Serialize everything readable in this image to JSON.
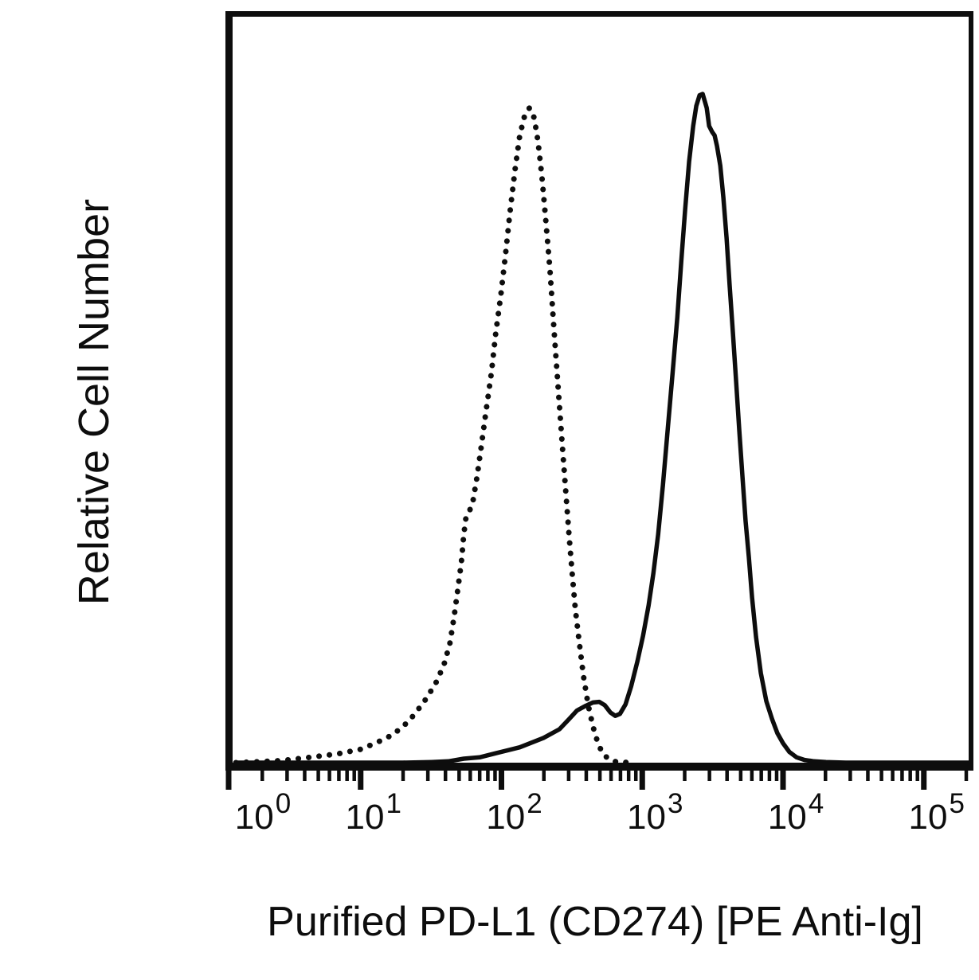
{
  "figure": {
    "background": "#ffffff",
    "ink_color": "#0d0d0d"
  },
  "chart_data": {
    "type": "line",
    "subtype": "flow-cytometry-histogram",
    "title": "",
    "xlabel": "Purified PD-L1 (CD274) [PE Anti-Ig]",
    "ylabel": "Relative Cell Number",
    "x_scale": "log10",
    "x_range": [
      1,
      100000
    ],
    "y_range": [
      0,
      1
    ],
    "grid": false,
    "legend": "none",
    "x_ticks": [
      {
        "base": "10",
        "exp": "0"
      },
      {
        "base": "10",
        "exp": "1"
      },
      {
        "base": "10",
        "exp": "2"
      },
      {
        "base": "10",
        "exp": "3"
      },
      {
        "base": "10",
        "exp": "4"
      },
      {
        "base": "10",
        "exp": "5"
      }
    ],
    "series": [
      {
        "name": "dotted-curve",
        "style": "dotted",
        "color": "#0d0d0d",
        "points": [
          [
            1.3,
            0
          ],
          [
            2.7,
            0.003
          ],
          [
            4,
            0.007
          ],
          [
            6.8,
            0.013
          ],
          [
            10,
            0.02
          ],
          [
            13,
            0.03
          ],
          [
            17,
            0.042
          ],
          [
            22,
            0.062
          ],
          [
            28,
            0.09
          ],
          [
            34,
            0.118
          ],
          [
            39,
            0.146
          ],
          [
            43,
            0.178
          ],
          [
            46,
            0.217
          ],
          [
            49,
            0.259
          ],
          [
            52,
            0.301
          ],
          [
            54,
            0.341
          ],
          [
            56,
            0.367
          ],
          [
            60,
            0.379
          ],
          [
            63,
            0.393
          ],
          [
            67,
            0.427
          ],
          [
            72,
            0.474
          ],
          [
            78,
            0.528
          ],
          [
            85,
            0.584
          ],
          [
            91,
            0.642
          ],
          [
            99,
            0.699
          ],
          [
            107,
            0.761
          ],
          [
            115,
            0.823
          ],
          [
            125,
            0.887
          ],
          [
            135,
            0.938
          ],
          [
            146,
            0.967
          ],
          [
            158,
            0.979
          ],
          [
            171,
            0.964
          ],
          [
            182,
            0.928
          ],
          [
            194,
            0.875
          ],
          [
            207,
            0.809
          ],
          [
            221,
            0.737
          ],
          [
            233,
            0.666
          ],
          [
            245,
            0.6
          ],
          [
            258,
            0.534
          ],
          [
            272,
            0.468
          ],
          [
            287,
            0.403
          ],
          [
            302,
            0.341
          ],
          [
            318,
            0.283
          ],
          [
            335,
            0.229
          ],
          [
            358,
            0.178
          ],
          [
            382,
            0.13
          ],
          [
            413,
            0.086
          ],
          [
            447,
            0.054
          ],
          [
            483,
            0.03
          ],
          [
            522,
            0.014
          ],
          [
            579,
            0.005
          ],
          [
            659,
            0.001
          ],
          [
            900,
            0
          ]
        ]
      },
      {
        "name": "solid-curve",
        "style": "solid",
        "color": "#0d0d0d",
        "points": [
          [
            1.3,
            0
          ],
          [
            20,
            0
          ],
          [
            32,
            0.001
          ],
          [
            42,
            0.002
          ],
          [
            54,
            0.006
          ],
          [
            70,
            0.008
          ],
          [
            91,
            0.014
          ],
          [
            135,
            0.023
          ],
          [
            199,
            0.037
          ],
          [
            258,
            0.05
          ],
          [
            302,
            0.065
          ],
          [
            344,
            0.078
          ],
          [
            397,
            0.085
          ],
          [
            447,
            0.09
          ],
          [
            495,
            0.091
          ],
          [
            542,
            0.086
          ],
          [
            594,
            0.075
          ],
          [
            643,
            0.07
          ],
          [
            695,
            0.073
          ],
          [
            760,
            0.087
          ],
          [
            834,
            0.114
          ],
          [
            925,
            0.152
          ],
          [
            1014,
            0.19
          ],
          [
            1109,
            0.235
          ],
          [
            1200,
            0.283
          ],
          [
            1297,
            0.341
          ],
          [
            1403,
            0.415
          ],
          [
            1517,
            0.498
          ],
          [
            1641,
            0.582
          ],
          [
            1774,
            0.666
          ],
          [
            1892,
            0.749
          ],
          [
            2018,
            0.827
          ],
          [
            2153,
            0.899
          ],
          [
            2301,
            0.952
          ],
          [
            2421,
            0.982
          ],
          [
            2553,
            0.998
          ],
          [
            2685,
            1.0
          ],
          [
            2871,
            0.979
          ],
          [
            2985,
            0.952
          ],
          [
            3141,
            0.943
          ],
          [
            3266,
            0.938
          ],
          [
            3396,
            0.922
          ],
          [
            3581,
            0.893
          ],
          [
            3767,
            0.845
          ],
          [
            3972,
            0.785
          ],
          [
            4178,
            0.713
          ],
          [
            4406,
            0.642
          ],
          [
            4645,
            0.57
          ],
          [
            4887,
            0.498
          ],
          [
            5152,
            0.427
          ],
          [
            5420,
            0.361
          ],
          [
            5715,
            0.307
          ],
          [
            6026,
            0.247
          ],
          [
            6427,
            0.188
          ],
          [
            6950,
            0.134
          ],
          [
            7603,
            0.092
          ],
          [
            8337,
            0.066
          ],
          [
            9120,
            0.044
          ],
          [
            10000,
            0.029
          ],
          [
            11092,
            0.016
          ],
          [
            12474,
            0.008
          ],
          [
            14223,
            0.004
          ],
          [
            16596,
            0.002
          ],
          [
            20184,
            0.001
          ],
          [
            27925,
            0
          ],
          [
            100000,
            0
          ],
          [
            300000,
            0
          ]
        ]
      }
    ]
  }
}
